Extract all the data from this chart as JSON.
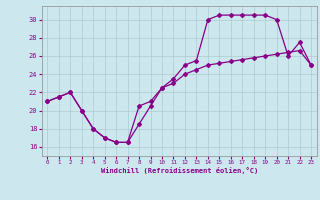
{
  "xlabel": "Windchill (Refroidissement éolien,°C)",
  "background_color": "#cce8ee",
  "line_color": "#880088",
  "grid_color": "#aacccc",
  "xlim": [
    -0.5,
    23.5
  ],
  "ylim": [
    15.0,
    31.5
  ],
  "xticks": [
    0,
    1,
    2,
    3,
    4,
    5,
    6,
    7,
    8,
    9,
    10,
    11,
    12,
    13,
    14,
    15,
    16,
    17,
    18,
    19,
    20,
    21,
    22,
    23
  ],
  "yticks": [
    16,
    18,
    20,
    22,
    24,
    26,
    28,
    30
  ],
  "series1_x": [
    0,
    1,
    2,
    3,
    4,
    5,
    6,
    7,
    8,
    9,
    10,
    11,
    12,
    13,
    14,
    15,
    16,
    17,
    18,
    19,
    20,
    21,
    22,
    23
  ],
  "series1_y": [
    21.0,
    21.5,
    22.0,
    20.0,
    18.0,
    17.0,
    16.5,
    16.5,
    18.5,
    20.5,
    22.5,
    23.5,
    25.0,
    25.5,
    30.0,
    30.5,
    30.5,
    30.5,
    30.5,
    30.5,
    30.0,
    26.0,
    27.5,
    25.0
  ],
  "series2_x": [
    0,
    1,
    2,
    3,
    4,
    5,
    6,
    7,
    8,
    9,
    10,
    11,
    12,
    13,
    14,
    15,
    16,
    17,
    18,
    19,
    20,
    21,
    22,
    23
  ],
  "series2_y": [
    21.0,
    21.5,
    22.0,
    20.0,
    18.0,
    17.0,
    16.5,
    16.5,
    20.5,
    21.0,
    22.5,
    23.0,
    24.0,
    24.5,
    25.0,
    25.2,
    25.4,
    25.6,
    25.8,
    26.0,
    26.2,
    26.4,
    26.6,
    25.0
  ],
  "marker": "D",
  "markersize": 2.0,
  "linewidth": 0.9
}
